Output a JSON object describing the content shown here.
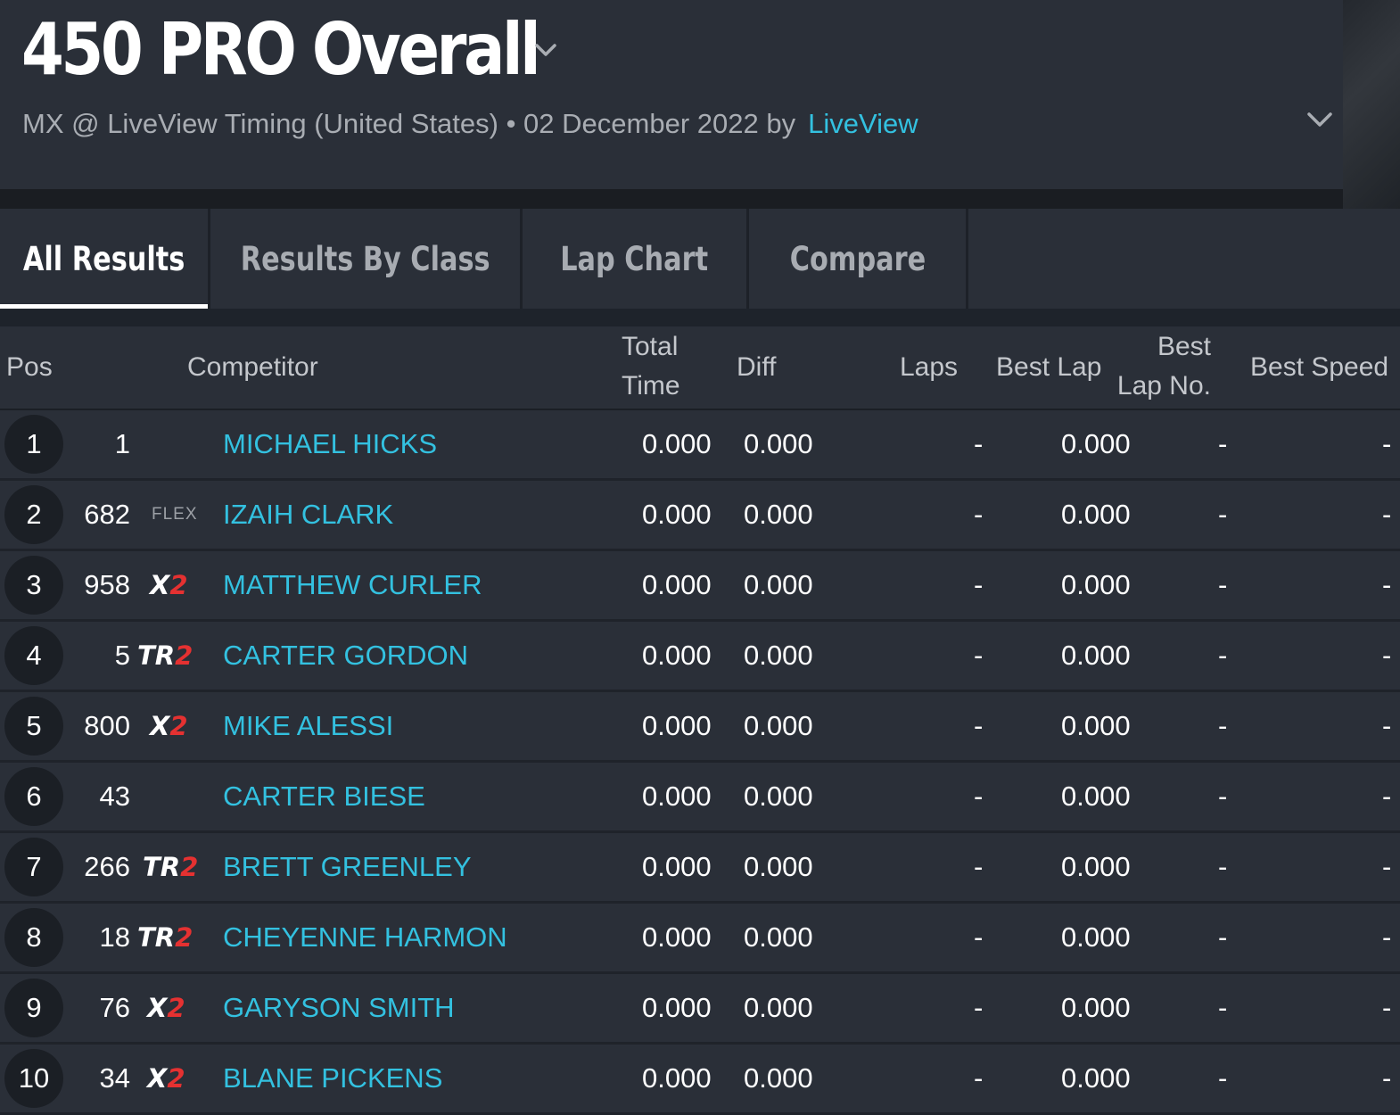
{
  "header": {
    "title": "450 PRO Overall",
    "subtitle": "MX @ LiveView Timing (United States) • 02 December 2022 by",
    "author_link": "LiveView"
  },
  "tabs": [
    {
      "label": "All Results",
      "active": true
    },
    {
      "label": "Results By Class",
      "active": false
    },
    {
      "label": "Lap Chart",
      "active": false
    },
    {
      "label": "Compare",
      "active": false
    }
  ],
  "table": {
    "columns": {
      "pos": "Pos",
      "competitor": "Competitor",
      "total_time_1": "Total",
      "total_time_2": "Time",
      "diff": "Diff",
      "laps": "Laps",
      "best_lap": "Best Lap",
      "best_lap_no_1": "Best",
      "best_lap_no_2": "Lap No.",
      "best_speed": "Best Speed"
    },
    "rows": [
      {
        "pos": "1",
        "number": "1",
        "brand": "",
        "name": "MICHAEL HICKS",
        "total": "0.000",
        "diff": "0.000",
        "laps": "-",
        "best_lap": "0.000",
        "best_lap_no": "-",
        "best_speed": "-"
      },
      {
        "pos": "2",
        "number": "682",
        "brand": "FLEX",
        "name": "IZAIH CLARK",
        "total": "0.000",
        "diff": "0.000",
        "laps": "-",
        "best_lap": "0.000",
        "best_lap_no": "-",
        "best_speed": "-"
      },
      {
        "pos": "3",
        "number": "958",
        "brand": "X2",
        "name": "MATTHEW CURLER",
        "total": "0.000",
        "diff": "0.000",
        "laps": "-",
        "best_lap": "0.000",
        "best_lap_no": "-",
        "best_speed": "-"
      },
      {
        "pos": "4",
        "number": "5",
        "brand": "TR2",
        "name": "CARTER GORDON",
        "total": "0.000",
        "diff": "0.000",
        "laps": "-",
        "best_lap": "0.000",
        "best_lap_no": "-",
        "best_speed": "-"
      },
      {
        "pos": "5",
        "number": "800",
        "brand": "X2",
        "name": "MIKE ALESSI",
        "total": "0.000",
        "diff": "0.000",
        "laps": "-",
        "best_lap": "0.000",
        "best_lap_no": "-",
        "best_speed": "-"
      },
      {
        "pos": "6",
        "number": "43",
        "brand": "",
        "name": "CARTER BIESE",
        "total": "0.000",
        "diff": "0.000",
        "laps": "-",
        "best_lap": "0.000",
        "best_lap_no": "-",
        "best_speed": "-"
      },
      {
        "pos": "7",
        "number": "266",
        "brand": "TR2",
        "name": "BRETT GREENLEY",
        "total": "0.000",
        "diff": "0.000",
        "laps": "-",
        "best_lap": "0.000",
        "best_lap_no": "-",
        "best_speed": "-"
      },
      {
        "pos": "8",
        "number": "18",
        "brand": "TR2",
        "name": "CHEYENNE HARMON",
        "total": "0.000",
        "diff": "0.000",
        "laps": "-",
        "best_lap": "0.000",
        "best_lap_no": "-",
        "best_speed": "-"
      },
      {
        "pos": "9",
        "number": "76",
        "brand": "X2",
        "name": "GARYSON SMITH",
        "total": "0.000",
        "diff": "0.000",
        "laps": "-",
        "best_lap": "0.000",
        "best_lap_no": "-",
        "best_speed": "-"
      },
      {
        "pos": "10",
        "number": "34",
        "brand": "X2",
        "name": "BLANE PICKENS",
        "total": "0.000",
        "diff": "0.000",
        "laps": "-",
        "best_lap": "0.000",
        "best_lap_no": "-",
        "best_speed": "-"
      }
    ]
  },
  "icons": {
    "title_dropdown": "chevron-down-icon",
    "header_expand": "chevron-down-icon"
  },
  "colors": {
    "background": "#1e232b",
    "panel": "#2a2f38",
    "link": "#33c1e0",
    "brand_red": "#e53131"
  }
}
